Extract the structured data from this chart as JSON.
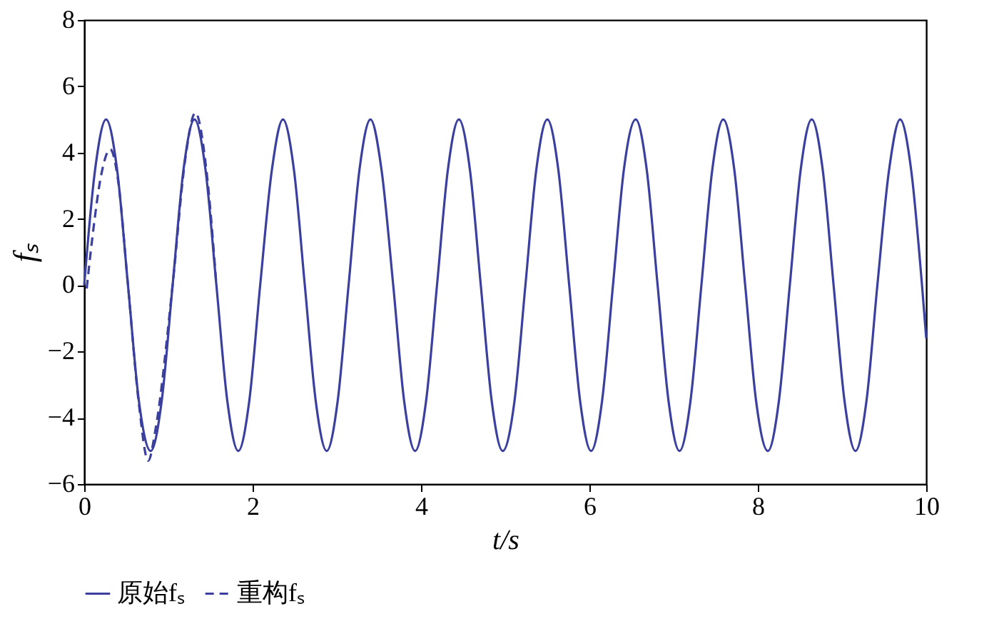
{
  "chart_data": {
    "type": "line",
    "xlabel": "t/s",
    "ylabel": "fₛ",
    "xlim": [
      0,
      10
    ],
    "ylim": [
      -6,
      8
    ],
    "xticks": [
      0,
      2,
      4,
      6,
      8,
      10
    ],
    "yticks": [
      -6,
      -4,
      -2,
      0,
      2,
      4,
      6,
      8
    ],
    "grid": false,
    "legend": "bottom",
    "marker": "none",
    "series": [
      {
        "name": "原始fₛ",
        "color": "#3b3f9e",
        "line_style": "solid",
        "x": [
          0,
          0.13,
          0.26,
          0.39,
          0.52,
          0.65,
          0.79,
          0.92,
          1.05,
          1.18,
          1.31,
          1.44,
          1.57,
          1.7,
          1.83,
          1.96,
          2.09,
          2.23,
          2.36,
          2.49,
          2.62,
          2.75,
          2.88,
          3.01,
          3.14,
          3.27,
          3.4,
          3.53,
          3.67,
          3.8,
          3.93,
          4.06,
          4.19,
          4.32,
          4.45,
          4.58,
          4.71,
          4.84,
          4.97,
          5.11,
          5.24,
          5.37,
          5.5,
          5.63,
          5.76,
          5.89,
          6.02,
          6.15,
          6.28,
          6.41,
          6.55,
          6.68,
          6.81,
          6.94,
          7.07,
          7.2,
          7.33,
          7.46,
          7.59,
          7.72,
          7.85,
          7.98,
          8.12,
          8.25,
          8.38,
          8.51,
          8.64,
          8.77,
          8.9,
          9.03,
          9.16,
          9.29,
          9.42,
          9.56,
          9.69,
          9.82,
          9.95,
          10
        ],
        "values": [
          0,
          3.5,
          5,
          3.5,
          0,
          -3.5,
          -5,
          -3.5,
          0,
          3.5,
          5,
          3.5,
          0,
          -3.5,
          -5,
          -3.5,
          0,
          3.5,
          5,
          3.5,
          0,
          -3.5,
          -5,
          -3.5,
          0,
          3.5,
          5,
          3.5,
          0,
          -3.5,
          -5,
          -3.5,
          0,
          3.5,
          5,
          3.5,
          0,
          -3.5,
          -5,
          -3.5,
          0,
          3.5,
          5,
          3.5,
          0,
          -3.5,
          -5,
          -3.5,
          0,
          3.5,
          5,
          3.5,
          0,
          -3.5,
          -5,
          -3.5,
          0,
          3.5,
          5,
          3.5,
          0,
          -3.5,
          -5,
          -3.5,
          0,
          3.5,
          5,
          3.5,
          0,
          -3.5,
          -5,
          -3.5,
          0,
          3.5,
          5,
          3.5,
          0,
          -1.6
        ]
      },
      {
        "name": "重构fₛ",
        "color": "#3b3f9e",
        "line_style": "dashed",
        "x": [
          0.03,
          0.1,
          0.2,
          0.31,
          0.4,
          0.52,
          0.65,
          0.76,
          0.85,
          1.05,
          1.2,
          1.32,
          1.45,
          1.57
        ],
        "values": [
          -0.1,
          1.5,
          3.3,
          4.1,
          3.2,
          0,
          -3.6,
          -5.3,
          -4.3,
          0,
          3.8,
          5.2,
          3.5,
          0
        ]
      }
    ]
  }
}
